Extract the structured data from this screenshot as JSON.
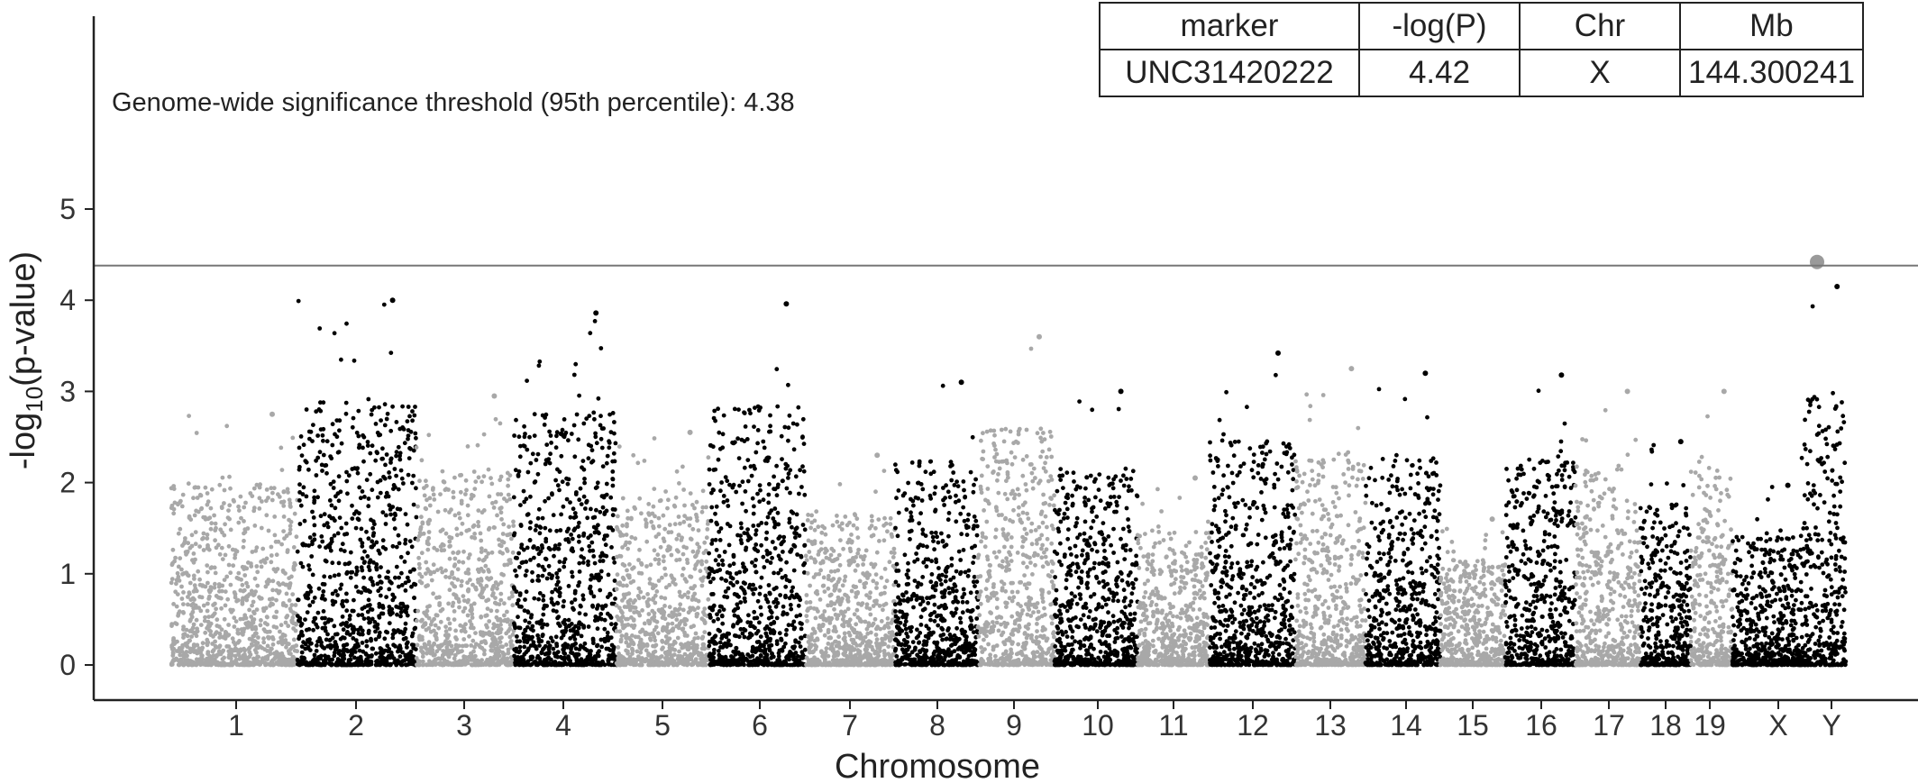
{
  "chart_data": {
    "type": "scatter",
    "title": "",
    "xlabel": "Chromosome",
    "ylabel_main": "-log",
    "ylabel_sub": "10",
    "ylabel_tail": "(p-value)",
    "ylim": [
      0,
      5.25
    ],
    "yticks": [
      "0",
      "1",
      "2",
      "3",
      "4",
      "5"
    ],
    "grid": false,
    "threshold": {
      "value": 4.38,
      "label": "Genome-wide significance threshold (95th percentile): 4.38"
    },
    "chromosomes": [
      {
        "name": "1",
        "peak": 2.75,
        "color": "#a8a8a8"
      },
      {
        "name": "2",
        "peak": 4.0,
        "color": "#000000"
      },
      {
        "name": "3",
        "peak": 2.95,
        "color": "#a8a8a8"
      },
      {
        "name": "4",
        "peak": 3.86,
        "color": "#000000"
      },
      {
        "name": "5",
        "peak": 2.55,
        "color": "#a8a8a8"
      },
      {
        "name": "6",
        "peak": 3.96,
        "color": "#000000"
      },
      {
        "name": "7",
        "peak": 2.3,
        "color": "#a8a8a8"
      },
      {
        "name": "8",
        "peak": 3.1,
        "color": "#000000"
      },
      {
        "name": "9",
        "peak": 3.6,
        "color": "#a8a8a8"
      },
      {
        "name": "10",
        "peak": 3.0,
        "color": "#000000"
      },
      {
        "name": "11",
        "peak": 2.05,
        "color": "#a8a8a8"
      },
      {
        "name": "12",
        "peak": 3.42,
        "color": "#000000"
      },
      {
        "name": "13",
        "peak": 3.25,
        "color": "#a8a8a8"
      },
      {
        "name": "14",
        "peak": 3.2,
        "color": "#000000"
      },
      {
        "name": "15",
        "peak": 1.6,
        "color": "#a8a8a8"
      },
      {
        "name": "16",
        "peak": 3.18,
        "color": "#000000"
      },
      {
        "name": "17",
        "peak": 3.0,
        "color": "#a8a8a8"
      },
      {
        "name": "18",
        "peak": 2.45,
        "color": "#000000"
      },
      {
        "name": "19",
        "peak": 3.0,
        "color": "#a8a8a8"
      },
      {
        "name": "X",
        "peak": 1.97,
        "color": "#000000"
      },
      {
        "name": "Y",
        "peak": 4.15,
        "color": "#000000"
      }
    ],
    "top_marker": {
      "chr": "X",
      "value": 4.42,
      "color": "#9a9a9a"
    }
  },
  "table": {
    "headers": [
      "marker",
      "-log(P)",
      "Chr",
      "Mb"
    ],
    "row": [
      "UNC31420222",
      "4.42",
      "X",
      "144.300241"
    ]
  }
}
